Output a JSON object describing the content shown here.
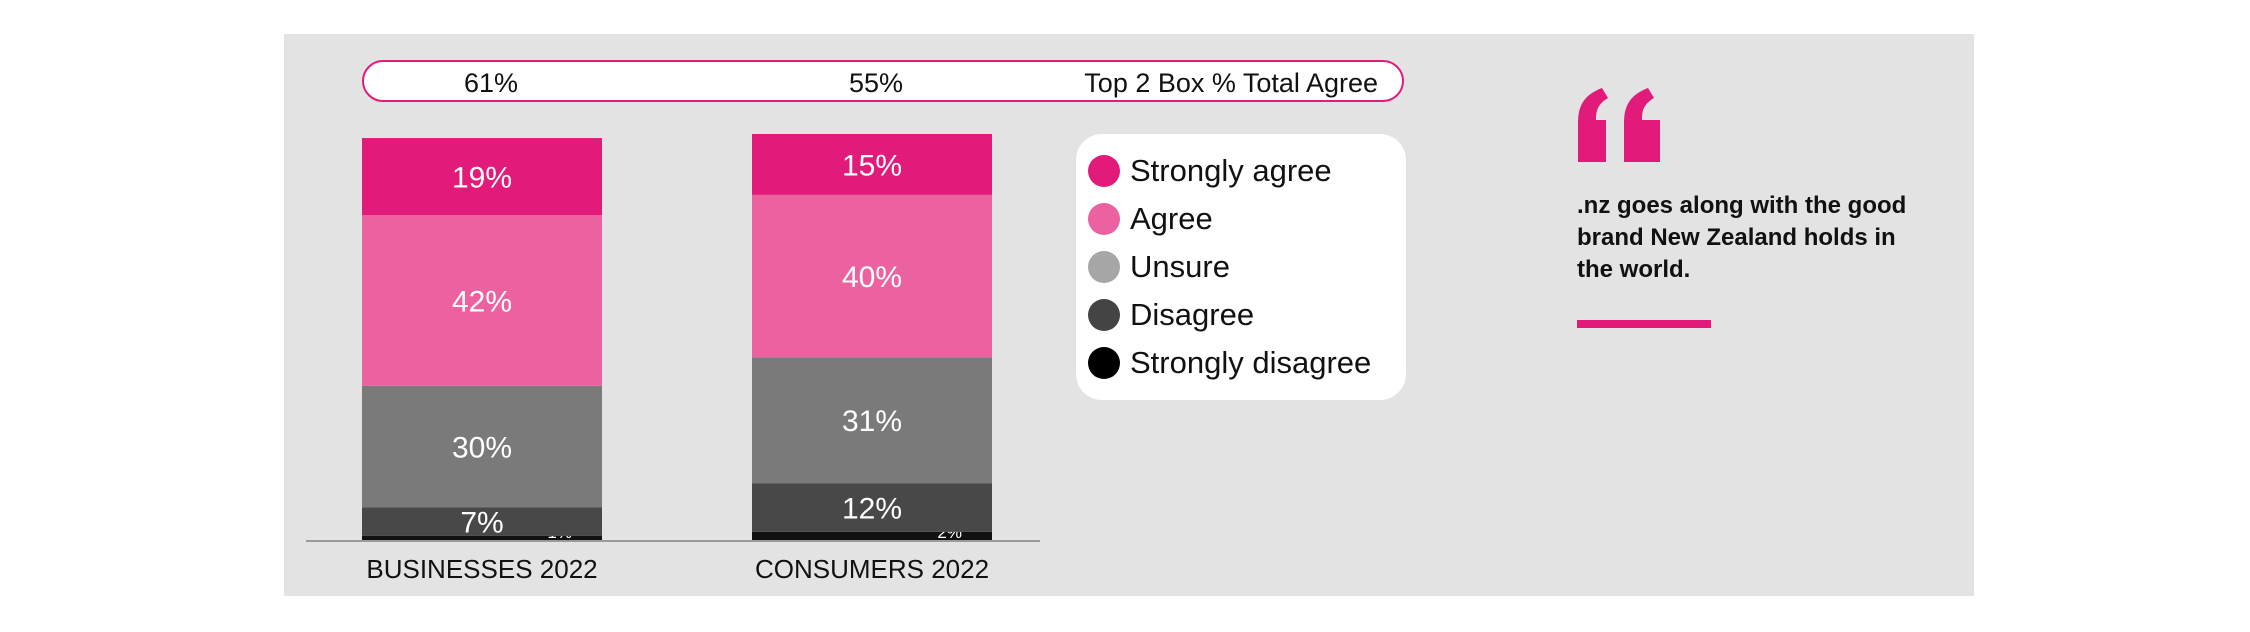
{
  "chart_data": {
    "type": "bar",
    "stacked": true,
    "categories": [
      "BUSINESSES 2022",
      "CONSUMERS 2022"
    ],
    "series": [
      {
        "name": "Strongly agree",
        "values": [
          19,
          15
        ],
        "labels": [
          "19%",
          "15%"
        ],
        "color": "#e21b7a"
      },
      {
        "name": "Agree",
        "values": [
          42,
          40
        ],
        "labels": [
          "42%",
          "40%"
        ],
        "color": "#ec62a1"
      },
      {
        "name": "Unsure",
        "values": [
          30,
          31
        ],
        "labels": [
          "30%",
          "31%"
        ],
        "color": "#7a7a7a"
      },
      {
        "name": "Disagree",
        "values": [
          7,
          12
        ],
        "labels": [
          "7%",
          "12%"
        ],
        "color": "#484848"
      },
      {
        "name": "Strongly disagree",
        "values": [
          1,
          2
        ],
        "labels": [
          "1%",
          "2%"
        ],
        "color": "#111111"
      }
    ],
    "top2box": {
      "label": "Top 2 Box % Total Agree",
      "values": [
        "61%",
        "55%"
      ]
    },
    "ylim": [
      0,
      100
    ],
    "legend_position": "right"
  },
  "legend": {
    "items": [
      {
        "label": "Strongly agree",
        "color": "#e21b7a"
      },
      {
        "label": "Agree",
        "color": "#ec62a1"
      },
      {
        "label": "Unsure",
        "color": "#a6a6a6"
      },
      {
        "label": "Disagree",
        "color": "#444444"
      },
      {
        "label": "Strongly disagree",
        "color": "#000000"
      }
    ]
  },
  "quote": {
    "text": ".nz goes along with the good brand New Zealand holds in the world.",
    "accent_color": "#e21b7a"
  }
}
